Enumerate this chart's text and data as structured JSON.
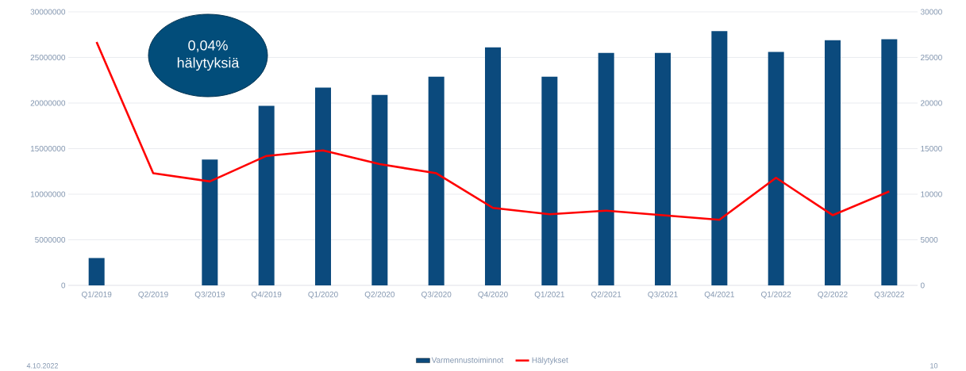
{
  "chart_data": {
    "type": "bar",
    "categories": [
      "Q1/2019",
      "Q2/2019",
      "Q3/2019",
      "Q4/2019",
      "Q1/2020",
      "Q2/2020",
      "Q3/2020",
      "Q4/2020",
      "Q1/2021",
      "Q2/2021",
      "Q3/2021",
      "Q4/2021",
      "Q1/2022",
      "Q2/2022",
      "Q3/2022"
    ],
    "series": [
      {
        "name": "Varmennustoiminnot",
        "color": "#0b4a7d",
        "values": [
          3000000,
          null,
          13800000,
          19700000,
          21700000,
          20900000,
          22900000,
          26100000,
          22900000,
          25500000,
          25500000,
          27900000,
          25600000,
          26900000,
          27000000
        ]
      },
      {
        "name": "Hälytykset",
        "type": "line",
        "axis": "y2",
        "color": "#ff0000",
        "values": [
          26700,
          12300,
          11400,
          14200,
          14800,
          13300,
          12300,
          8500,
          7800,
          8200,
          7700,
          7200,
          11800,
          7700,
          10300
        ]
      }
    ],
    "ylim": [
      0,
      30000000
    ],
    "yticks": [
      0,
      5000000,
      10000000,
      15000000,
      20000000,
      25000000,
      30000000
    ],
    "y2lim": [
      0,
      30000
    ],
    "y2ticks": [
      0,
      5000,
      10000,
      15000,
      20000,
      25000,
      30000
    ],
    "grid": "y",
    "legend": "bottom",
    "annotations": [
      "0,04% hälytyksiä",
      "4.10.2022",
      "10"
    ]
  }
}
